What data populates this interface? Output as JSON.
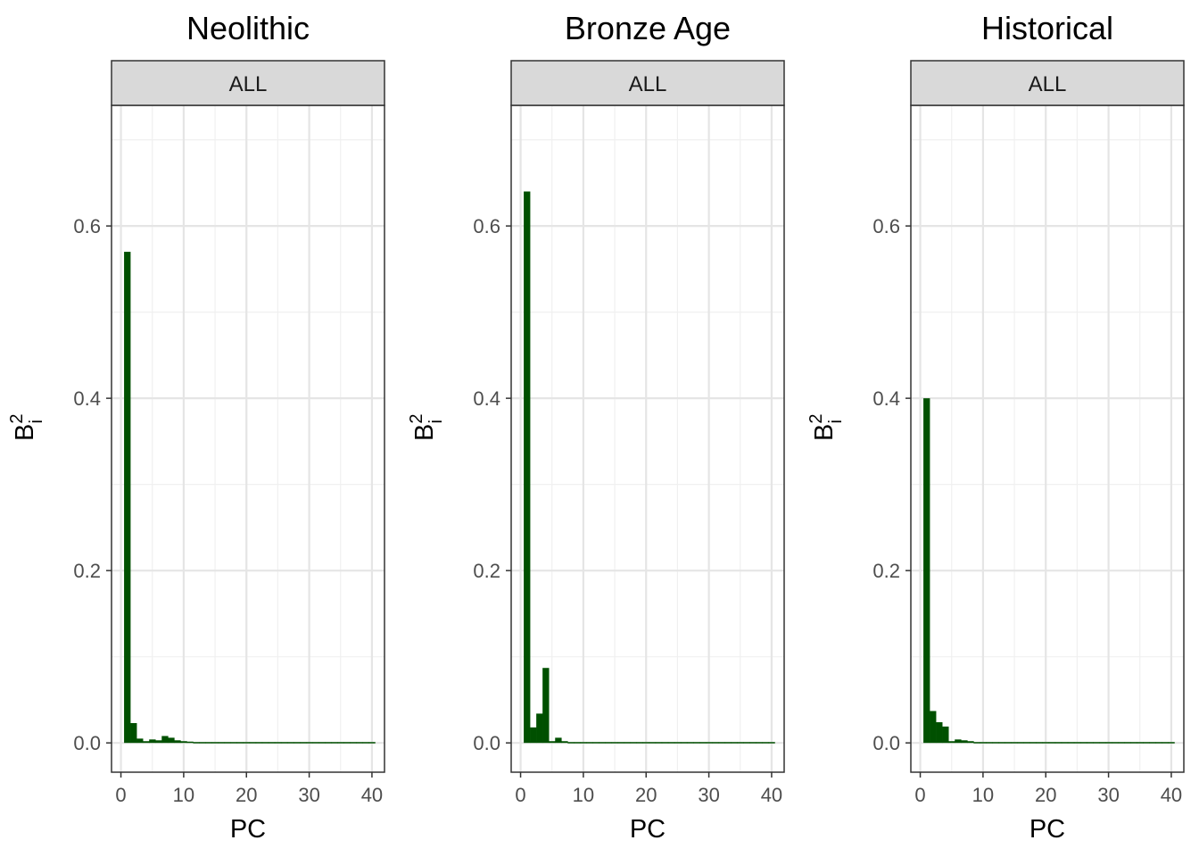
{
  "chart_data": [
    {
      "type": "bar",
      "title": "Neolithic",
      "strip": "ALL",
      "xlabel": "PC",
      "ylabel": "B",
      "ylabel_sup": "2",
      "ylabel_sub": "i",
      "xlim": [
        -1.5,
        42
      ],
      "ylim": [
        -0.034,
        0.74
      ],
      "xticks": [
        0,
        10,
        20,
        30,
        40
      ],
      "yticks": [
        0.0,
        0.2,
        0.4,
        0.6
      ],
      "xtick_labels": [
        "0",
        "10",
        "20",
        "30",
        "40"
      ],
      "ytick_labels": [
        "0.0",
        "0.2",
        "0.4",
        "0.6"
      ],
      "grid": true,
      "bar_color": "#005000",
      "x": [
        1,
        2,
        3,
        4,
        5,
        6,
        7,
        8,
        9,
        10,
        11,
        12,
        13,
        14,
        15,
        16,
        17,
        18,
        19,
        20,
        21,
        22,
        23,
        24,
        25,
        26,
        27,
        28,
        29,
        30,
        31,
        32,
        33,
        34,
        35,
        36,
        37,
        38,
        39,
        40
      ],
      "values": [
        0.57,
        0.023,
        0.005,
        0.002,
        0.004,
        0.003,
        0.008,
        0.006,
        0.003,
        0.002,
        0.0015,
        0.001,
        0.001,
        0.001,
        0.001,
        0.001,
        0.001,
        0.001,
        0.001,
        0.001,
        0.001,
        0.001,
        0.001,
        0.001,
        0.001,
        0.001,
        0.001,
        0.001,
        0.001,
        0.001,
        0.001,
        0.001,
        0.001,
        0.001,
        0.001,
        0.001,
        0.001,
        0.001,
        0.001,
        0.001
      ]
    },
    {
      "type": "bar",
      "title": "Bronze Age",
      "strip": "ALL",
      "xlabel": "PC",
      "ylabel": "B",
      "ylabel_sup": "2",
      "ylabel_sub": "i",
      "xlim": [
        -1.5,
        42
      ],
      "ylim": [
        -0.034,
        0.74
      ],
      "xticks": [
        0,
        10,
        20,
        30,
        40
      ],
      "yticks": [
        0.0,
        0.2,
        0.4,
        0.6
      ],
      "xtick_labels": [
        "0",
        "10",
        "20",
        "30",
        "40"
      ],
      "ytick_labels": [
        "0.0",
        "0.2",
        "0.4",
        "0.6"
      ],
      "grid": true,
      "bar_color": "#005000",
      "x": [
        1,
        2,
        3,
        4,
        5,
        6,
        7,
        8,
        9,
        10,
        11,
        12,
        13,
        14,
        15,
        16,
        17,
        18,
        19,
        20,
        21,
        22,
        23,
        24,
        25,
        26,
        27,
        28,
        29,
        30,
        31,
        32,
        33,
        34,
        35,
        36,
        37,
        38,
        39,
        40
      ],
      "values": [
        0.64,
        0.018,
        0.034,
        0.087,
        0.002,
        0.006,
        0.002,
        0.001,
        0.001,
        0.001,
        0.001,
        0.001,
        0.001,
        0.001,
        0.001,
        0.001,
        0.001,
        0.001,
        0.001,
        0.001,
        0.001,
        0.001,
        0.001,
        0.001,
        0.001,
        0.001,
        0.001,
        0.001,
        0.001,
        0.001,
        0.001,
        0.001,
        0.001,
        0.001,
        0.001,
        0.001,
        0.001,
        0.001,
        0.001,
        0.001
      ]
    },
    {
      "type": "bar",
      "title": "Historical",
      "strip": "ALL",
      "xlabel": "PC",
      "ylabel": "B",
      "ylabel_sup": "2",
      "ylabel_sub": "i",
      "xlim": [
        -1.5,
        42
      ],
      "ylim": [
        -0.034,
        0.74
      ],
      "xticks": [
        0,
        10,
        20,
        30,
        40
      ],
      "yticks": [
        0.0,
        0.2,
        0.4,
        0.6
      ],
      "xtick_labels": [
        "0",
        "10",
        "20",
        "30",
        "40"
      ],
      "ytick_labels": [
        "0.0",
        "0.2",
        "0.4",
        "0.6"
      ],
      "grid": true,
      "bar_color": "#005000",
      "x": [
        1,
        2,
        3,
        4,
        5,
        6,
        7,
        8,
        9,
        10,
        11,
        12,
        13,
        14,
        15,
        16,
        17,
        18,
        19,
        20,
        21,
        22,
        23,
        24,
        25,
        26,
        27,
        28,
        29,
        30,
        31,
        32,
        33,
        34,
        35,
        36,
        37,
        38,
        39,
        40
      ],
      "values": [
        0.4,
        0.037,
        0.024,
        0.019,
        0.002,
        0.004,
        0.003,
        0.002,
        0.001,
        0.001,
        0.001,
        0.001,
        0.001,
        0.001,
        0.001,
        0.001,
        0.001,
        0.001,
        0.001,
        0.001,
        0.001,
        0.001,
        0.001,
        0.001,
        0.001,
        0.001,
        0.001,
        0.001,
        0.001,
        0.001,
        0.001,
        0.001,
        0.001,
        0.001,
        0.001,
        0.001,
        0.001,
        0.001,
        0.001,
        0.001
      ]
    }
  ]
}
